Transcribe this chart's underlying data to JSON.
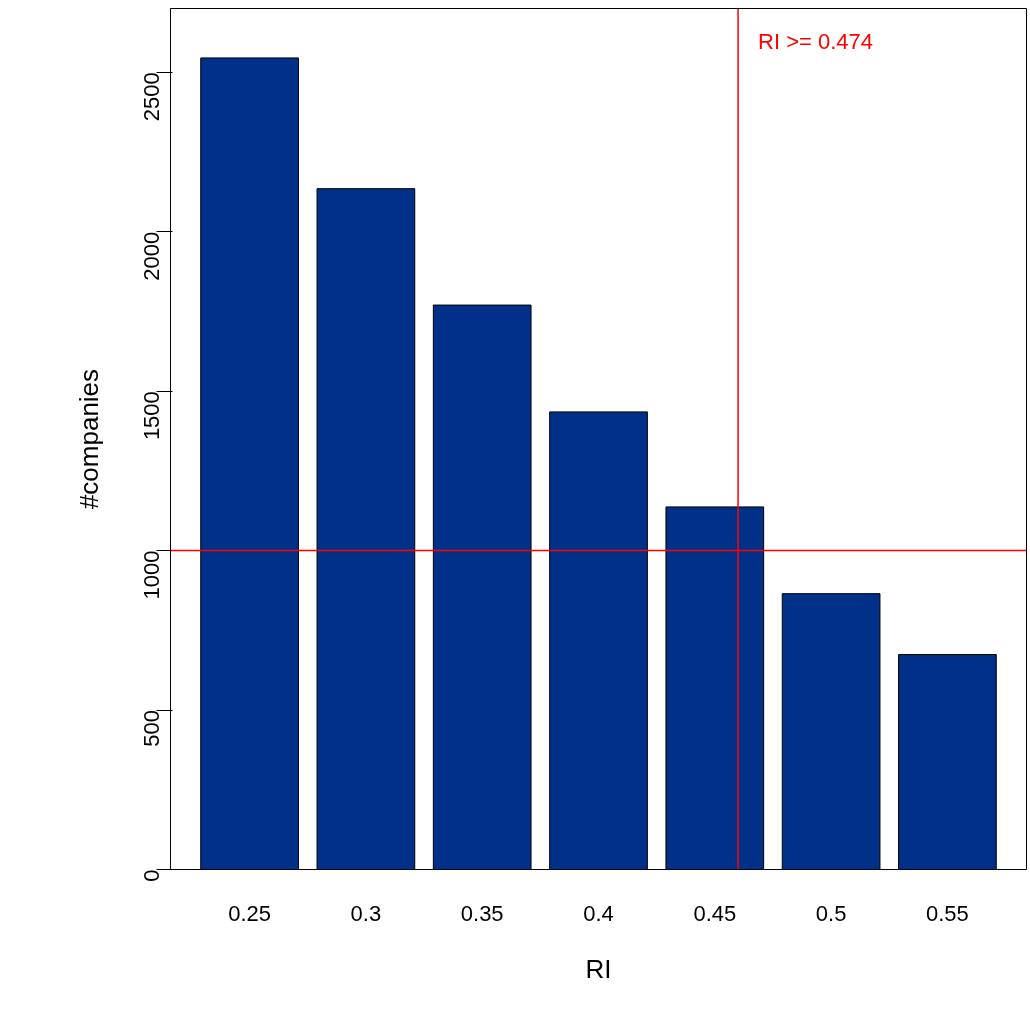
{
  "chart_data": {
    "type": "bar",
    "xlabel": "RI",
    "ylabel": "#companies",
    "x": [
      0.25,
      0.3,
      0.35,
      0.4,
      0.45,
      0.5,
      0.55
    ],
    "values": [
      2545,
      2135,
      1770,
      1435,
      1137,
      865,
      674
    ],
    "color": "#003087",
    "xlim": [
      0.216,
      0.584
    ],
    "xticks": [
      0.25,
      0.3,
      0.35,
      0.4,
      0.45,
      0.5,
      0.55
    ],
    "ylim": [
      0,
      2700
    ],
    "yticks": [
      0,
      500,
      1000,
      1500,
      2000,
      2500
    ],
    "grid": false,
    "annotations": [
      "RI >= 0.474"
    ],
    "ref_lines": [
      {
        "axis": "x",
        "value": 0.46,
        "color": "#ff0000"
      },
      {
        "axis": "y",
        "value": 1000,
        "color": "#ff0000"
      }
    ]
  }
}
